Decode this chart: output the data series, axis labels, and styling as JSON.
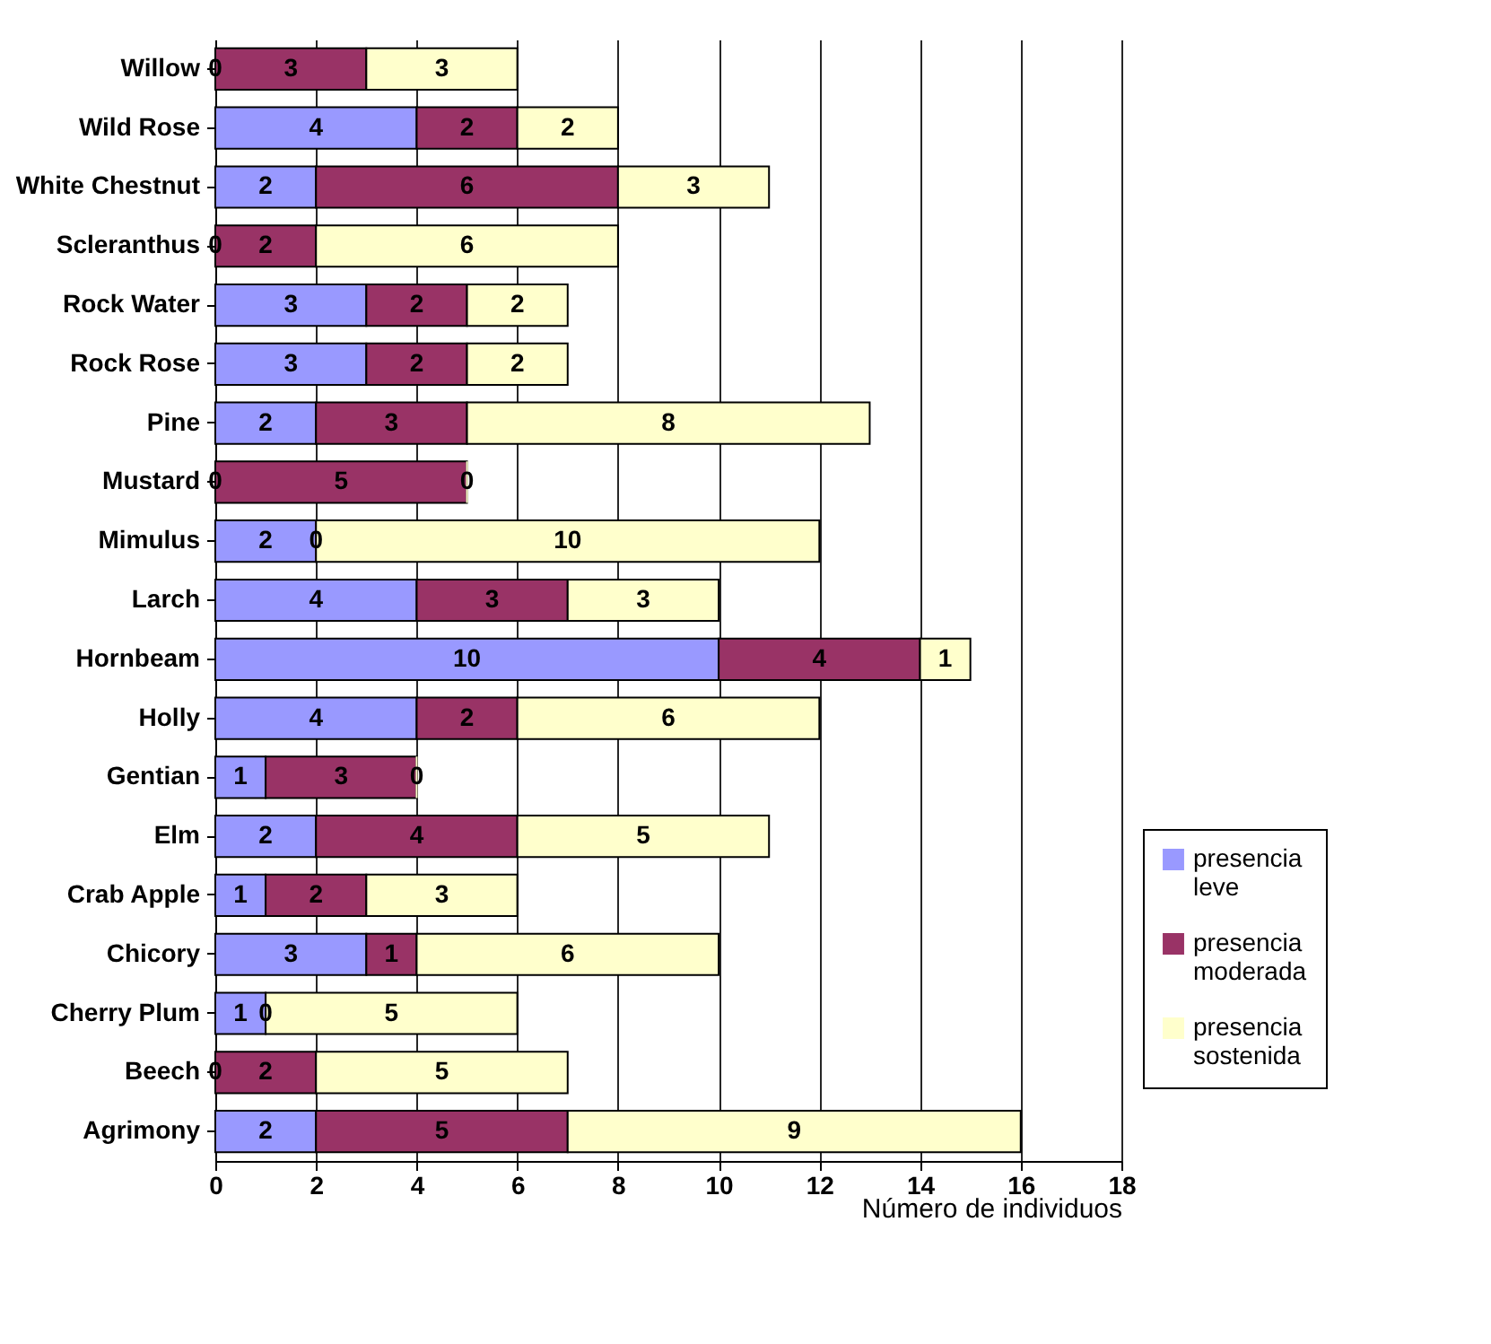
{
  "chart_data": {
    "type": "bar",
    "orientation": "horizontal",
    "stacked": true,
    "xlabel": "Número de individuos",
    "categories": [
      "Willow",
      "Wild Rose",
      "White Chestnut",
      "Scleranthus",
      "Rock Water",
      "Rock Rose",
      "Pine",
      "Mustard",
      "Mimulus",
      "Larch",
      "Hornbeam",
      "Holly",
      "Gentian",
      "Elm",
      "Crab Apple",
      "Chicory",
      "Cherry Plum",
      "Beech",
      "Agrimony"
    ],
    "series": [
      {
        "name": "presencia leve",
        "color": "#9999ff",
        "values": [
          0,
          4,
          2,
          0,
          3,
          3,
          2,
          0,
          2,
          4,
          10,
          4,
          1,
          2,
          1,
          3,
          1,
          0,
          2
        ]
      },
      {
        "name": "presencia moderada",
        "color": "#993366",
        "values": [
          3,
          2,
          6,
          2,
          2,
          2,
          3,
          5,
          0,
          3,
          4,
          2,
          3,
          4,
          2,
          1,
          0,
          2,
          5
        ]
      },
      {
        "name": "presencia sostenida",
        "color": "#ffffcc",
        "values": [
          3,
          2,
          3,
          6,
          2,
          2,
          8,
          0,
          10,
          3,
          1,
          6,
          0,
          5,
          3,
          6,
          5,
          5,
          9
        ]
      }
    ],
    "xlim": [
      0,
      18
    ],
    "xticks": [
      0,
      2,
      4,
      6,
      8,
      10,
      12,
      14,
      16,
      18
    ],
    "grid": "x",
    "legend": "bottom right",
    "data_labels": true
  }
}
